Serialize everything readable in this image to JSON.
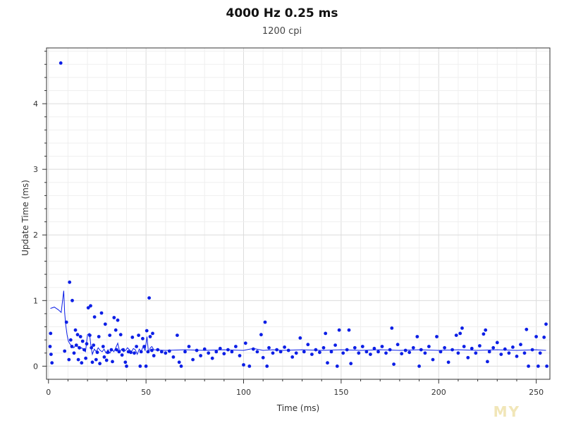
{
  "chart_data": {
    "type": "scatter",
    "title": "4000 Hz 0.25 ms",
    "subtitle": "1200 cpi",
    "xlabel": "Time (ms)",
    "ylabel": "Update Time (ms)",
    "xlim": [
      -1,
      257
    ],
    "ylim": [
      -0.2,
      4.85
    ],
    "xticks": [
      0,
      50,
      100,
      150,
      200,
      250
    ],
    "yticks": [
      0,
      1,
      2,
      3,
      4
    ],
    "grid": true,
    "series": [
      {
        "type": "scatter",
        "color": "#0b1ee6",
        "points": [
          [
            6.3,
            4.62
          ],
          [
            10.8,
            1.28
          ],
          [
            12.2,
            1.0
          ],
          [
            8.3,
            0.23
          ],
          [
            9.2,
            0.67
          ],
          [
            1.1,
            0.5
          ],
          [
            0.8,
            0.3
          ],
          [
            1.3,
            0.18
          ],
          [
            1.8,
            0.05
          ],
          [
            10.5,
            0.1
          ],
          [
            11.4,
            0.4
          ],
          [
            12.0,
            0.3
          ],
          [
            13.1,
            0.2
          ],
          [
            13.8,
            0.55
          ],
          [
            14.3,
            0.32
          ],
          [
            14.9,
            0.48
          ],
          [
            15.3,
            0.1
          ],
          [
            15.8,
            0.28
          ],
          [
            16.4,
            0.45
          ],
          [
            17.0,
            0.05
          ],
          [
            17.5,
            0.38
          ],
          [
            18.3,
            0.25
          ],
          [
            19.1,
            0.12
          ],
          [
            19.6,
            0.34
          ],
          [
            20.4,
            0.89
          ],
          [
            21.6,
            0.92
          ],
          [
            21.2,
            0.47
          ],
          [
            22.0,
            0.28
          ],
          [
            22.5,
            0.06
          ],
          [
            23.1,
            0.32
          ],
          [
            23.6,
            0.75
          ],
          [
            24.4,
            0.1
          ],
          [
            25.0,
            0.21
          ],
          [
            25.8,
            0.45
          ],
          [
            26.3,
            0.04
          ],
          [
            27.2,
            0.81
          ],
          [
            28.0,
            0.3
          ],
          [
            28.6,
            0.14
          ],
          [
            29.1,
            0.64
          ],
          [
            29.8,
            0.09
          ],
          [
            30.4,
            0.21
          ],
          [
            31.4,
            0.47
          ],
          [
            32.2,
            0.25
          ],
          [
            32.8,
            0.07
          ],
          [
            33.6,
            0.74
          ],
          [
            34.5,
            0.55
          ],
          [
            34.9,
            0.25
          ],
          [
            35.5,
            0.7
          ],
          [
            36.2,
            0.22
          ],
          [
            37.0,
            0.48
          ],
          [
            37.7,
            0.17
          ],
          [
            38.3,
            0.25
          ],
          [
            39.4,
            0.06
          ],
          [
            40.0,
            0.0
          ],
          [
            41.0,
            0.22
          ],
          [
            42.2,
            0.21
          ],
          [
            43.0,
            0.44
          ],
          [
            44.0,
            0.2
          ],
          [
            45.1,
            0.3
          ],
          [
            46.2,
            0.47
          ],
          [
            47.0,
            0.0
          ],
          [
            47.5,
            0.22
          ],
          [
            48.3,
            0.42
          ],
          [
            49.1,
            0.3
          ],
          [
            50.0,
            0.0
          ],
          [
            50.4,
            0.54
          ],
          [
            51.0,
            0.22
          ],
          [
            51.6,
            1.04
          ],
          [
            52.1,
            0.45
          ],
          [
            53.0,
            0.24
          ],
          [
            53.4,
            0.5
          ],
          [
            54.0,
            0.16
          ],
          [
            56,
            0.25
          ],
          [
            58,
            0.22
          ],
          [
            60,
            0.2
          ],
          [
            62,
            0.23
          ],
          [
            64,
            0.14
          ],
          [
            66,
            0.47
          ],
          [
            67,
            0.06
          ],
          [
            68,
            0.0
          ],
          [
            70,
            0.22
          ],
          [
            72,
            0.3
          ],
          [
            74,
            0.1
          ],
          [
            76,
            0.24
          ],
          [
            78,
            0.16
          ],
          [
            80,
            0.26
          ],
          [
            82,
            0.2
          ],
          [
            84,
            0.12
          ],
          [
            86,
            0.22
          ],
          [
            88,
            0.27
          ],
          [
            90,
            0.19
          ],
          [
            92,
            0.25
          ],
          [
            94,
            0.22
          ],
          [
            96,
            0.3
          ],
          [
            98,
            0.16
          ],
          [
            100,
            0.02
          ],
          [
            101,
            0.35
          ],
          [
            103,
            0.0
          ],
          [
            105,
            0.26
          ],
          [
            107,
            0.22
          ],
          [
            109,
            0.48
          ],
          [
            110,
            0.13
          ],
          [
            111,
            0.67
          ],
          [
            112,
            0.0
          ],
          [
            113,
            0.28
          ],
          [
            115,
            0.2
          ],
          [
            117,
            0.25
          ],
          [
            119,
            0.22
          ],
          [
            121,
            0.29
          ],
          [
            123,
            0.24
          ],
          [
            125,
            0.14
          ],
          [
            127,
            0.2
          ],
          [
            129,
            0.43
          ],
          [
            131,
            0.22
          ],
          [
            133,
            0.33
          ],
          [
            135,
            0.18
          ],
          [
            137,
            0.25
          ],
          [
            139,
            0.21
          ],
          [
            141,
            0.28
          ],
          [
            142,
            0.5
          ],
          [
            143,
            0.05
          ],
          [
            145,
            0.22
          ],
          [
            147,
            0.32
          ],
          [
            148,
            0.0
          ],
          [
            149,
            0.55
          ],
          [
            151,
            0.2
          ],
          [
            153,
            0.25
          ],
          [
            154,
            0.55
          ],
          [
            155,
            0.04
          ],
          [
            157,
            0.28
          ],
          [
            159,
            0.2
          ],
          [
            161,
            0.3
          ],
          [
            163,
            0.22
          ],
          [
            165,
            0.18
          ],
          [
            167,
            0.27
          ],
          [
            169,
            0.22
          ],
          [
            171,
            0.3
          ],
          [
            173,
            0.2
          ],
          [
            175,
            0.25
          ],
          [
            176,
            0.58
          ],
          [
            177,
            0.03
          ],
          [
            179,
            0.33
          ],
          [
            181,
            0.19
          ],
          [
            183,
            0.24
          ],
          [
            185,
            0.21
          ],
          [
            187,
            0.28
          ],
          [
            189,
            0.45
          ],
          [
            190,
            0.0
          ],
          [
            191,
            0.25
          ],
          [
            193,
            0.2
          ],
          [
            195,
            0.3
          ],
          [
            197,
            0.1
          ],
          [
            199,
            0.45
          ],
          [
            201,
            0.22
          ],
          [
            203,
            0.28
          ],
          [
            205,
            0.06
          ],
          [
            207,
            0.25
          ],
          [
            209,
            0.47
          ],
          [
            210,
            0.2
          ],
          [
            211,
            0.5
          ],
          [
            212,
            0.58
          ],
          [
            213,
            0.3
          ],
          [
            215,
            0.13
          ],
          [
            217,
            0.27
          ],
          [
            219,
            0.2
          ],
          [
            221,
            0.31
          ],
          [
            223,
            0.49
          ],
          [
            224,
            0.55
          ],
          [
            225,
            0.07
          ],
          [
            226,
            0.22
          ],
          [
            228,
            0.28
          ],
          [
            230,
            0.36
          ],
          [
            232,
            0.18
          ],
          [
            234,
            0.26
          ],
          [
            236,
            0.2
          ],
          [
            238,
            0.29
          ],
          [
            240,
            0.15
          ],
          [
            242,
            0.33
          ],
          [
            244,
            0.2
          ],
          [
            245,
            0.56
          ],
          [
            246,
            0.0
          ],
          [
            248,
            0.25
          ],
          [
            250,
            0.45
          ],
          [
            251,
            0.0
          ],
          [
            252,
            0.2
          ],
          [
            254,
            0.44
          ],
          [
            255,
            0.64
          ],
          [
            255.4,
            0.0
          ]
        ]
      },
      {
        "type": "line",
        "color": "#0b1ee6",
        "points": [
          [
            1,
            0.88
          ],
          [
            3,
            0.9
          ],
          [
            5,
            0.86
          ],
          [
            6.5,
            0.82
          ],
          [
            7.8,
            1.15
          ],
          [
            8.3,
            0.82
          ],
          [
            8.8,
            0.64
          ],
          [
            9.5,
            0.48
          ],
          [
            10.2,
            0.38
          ],
          [
            11,
            0.34
          ],
          [
            12,
            0.3
          ],
          [
            13,
            0.28
          ],
          [
            14,
            0.32
          ],
          [
            15,
            0.3
          ],
          [
            16,
            0.26
          ],
          [
            17,
            0.28
          ],
          [
            18,
            0.25
          ],
          [
            19,
            0.22
          ],
          [
            20,
            0.48
          ],
          [
            21,
            0.5
          ],
          [
            21.8,
            0.3
          ],
          [
            22.5,
            0.18
          ],
          [
            23.5,
            0.26
          ],
          [
            24.5,
            0.22
          ],
          [
            25.5,
            0.28
          ],
          [
            26.5,
            0.24
          ],
          [
            27.5,
            0.22
          ],
          [
            28.5,
            0.26
          ],
          [
            29.5,
            0.2
          ],
          [
            30.5,
            0.25
          ],
          [
            31.5,
            0.2
          ],
          [
            32.5,
            0.26
          ],
          [
            33.5,
            0.22
          ],
          [
            34.5,
            0.28
          ],
          [
            35.5,
            0.35
          ],
          [
            36.5,
            0.22
          ],
          [
            37.5,
            0.26
          ],
          [
            38.5,
            0.22
          ],
          [
            39.5,
            0.24
          ],
          [
            40.5,
            0.28
          ],
          [
            41.5,
            0.25
          ],
          [
            42.5,
            0.22
          ],
          [
            43.5,
            0.27
          ],
          [
            44.5,
            0.25
          ],
          [
            45.5,
            0.18
          ],
          [
            46.5,
            0.26
          ],
          [
            47.5,
            0.22
          ],
          [
            48.5,
            0.3
          ],
          [
            49.5,
            0.24
          ],
          [
            50.5,
            0.45
          ],
          [
            51.3,
            0.2
          ],
          [
            52.2,
            0.28
          ],
          [
            53,
            0.3
          ],
          [
            54,
            0.25
          ],
          [
            60,
            0.24
          ],
          [
            70,
            0.25
          ],
          [
            80,
            0.24
          ],
          [
            90,
            0.25
          ],
          [
            100,
            0.24
          ],
          [
            105,
            0.27
          ],
          [
            110,
            0.24
          ],
          [
            115,
            0.25
          ],
          [
            120,
            0.24
          ],
          [
            130,
            0.25
          ],
          [
            140,
            0.24
          ],
          [
            150,
            0.25
          ],
          [
            160,
            0.24
          ],
          [
            170,
            0.25
          ],
          [
            180,
            0.24
          ],
          [
            190,
            0.25
          ],
          [
            200,
            0.24
          ],
          [
            210,
            0.25
          ],
          [
            220,
            0.24
          ],
          [
            230,
            0.25
          ],
          [
            240,
            0.24
          ],
          [
            250,
            0.25
          ],
          [
            255,
            0.24
          ]
        ]
      }
    ]
  },
  "watermark": "MY"
}
